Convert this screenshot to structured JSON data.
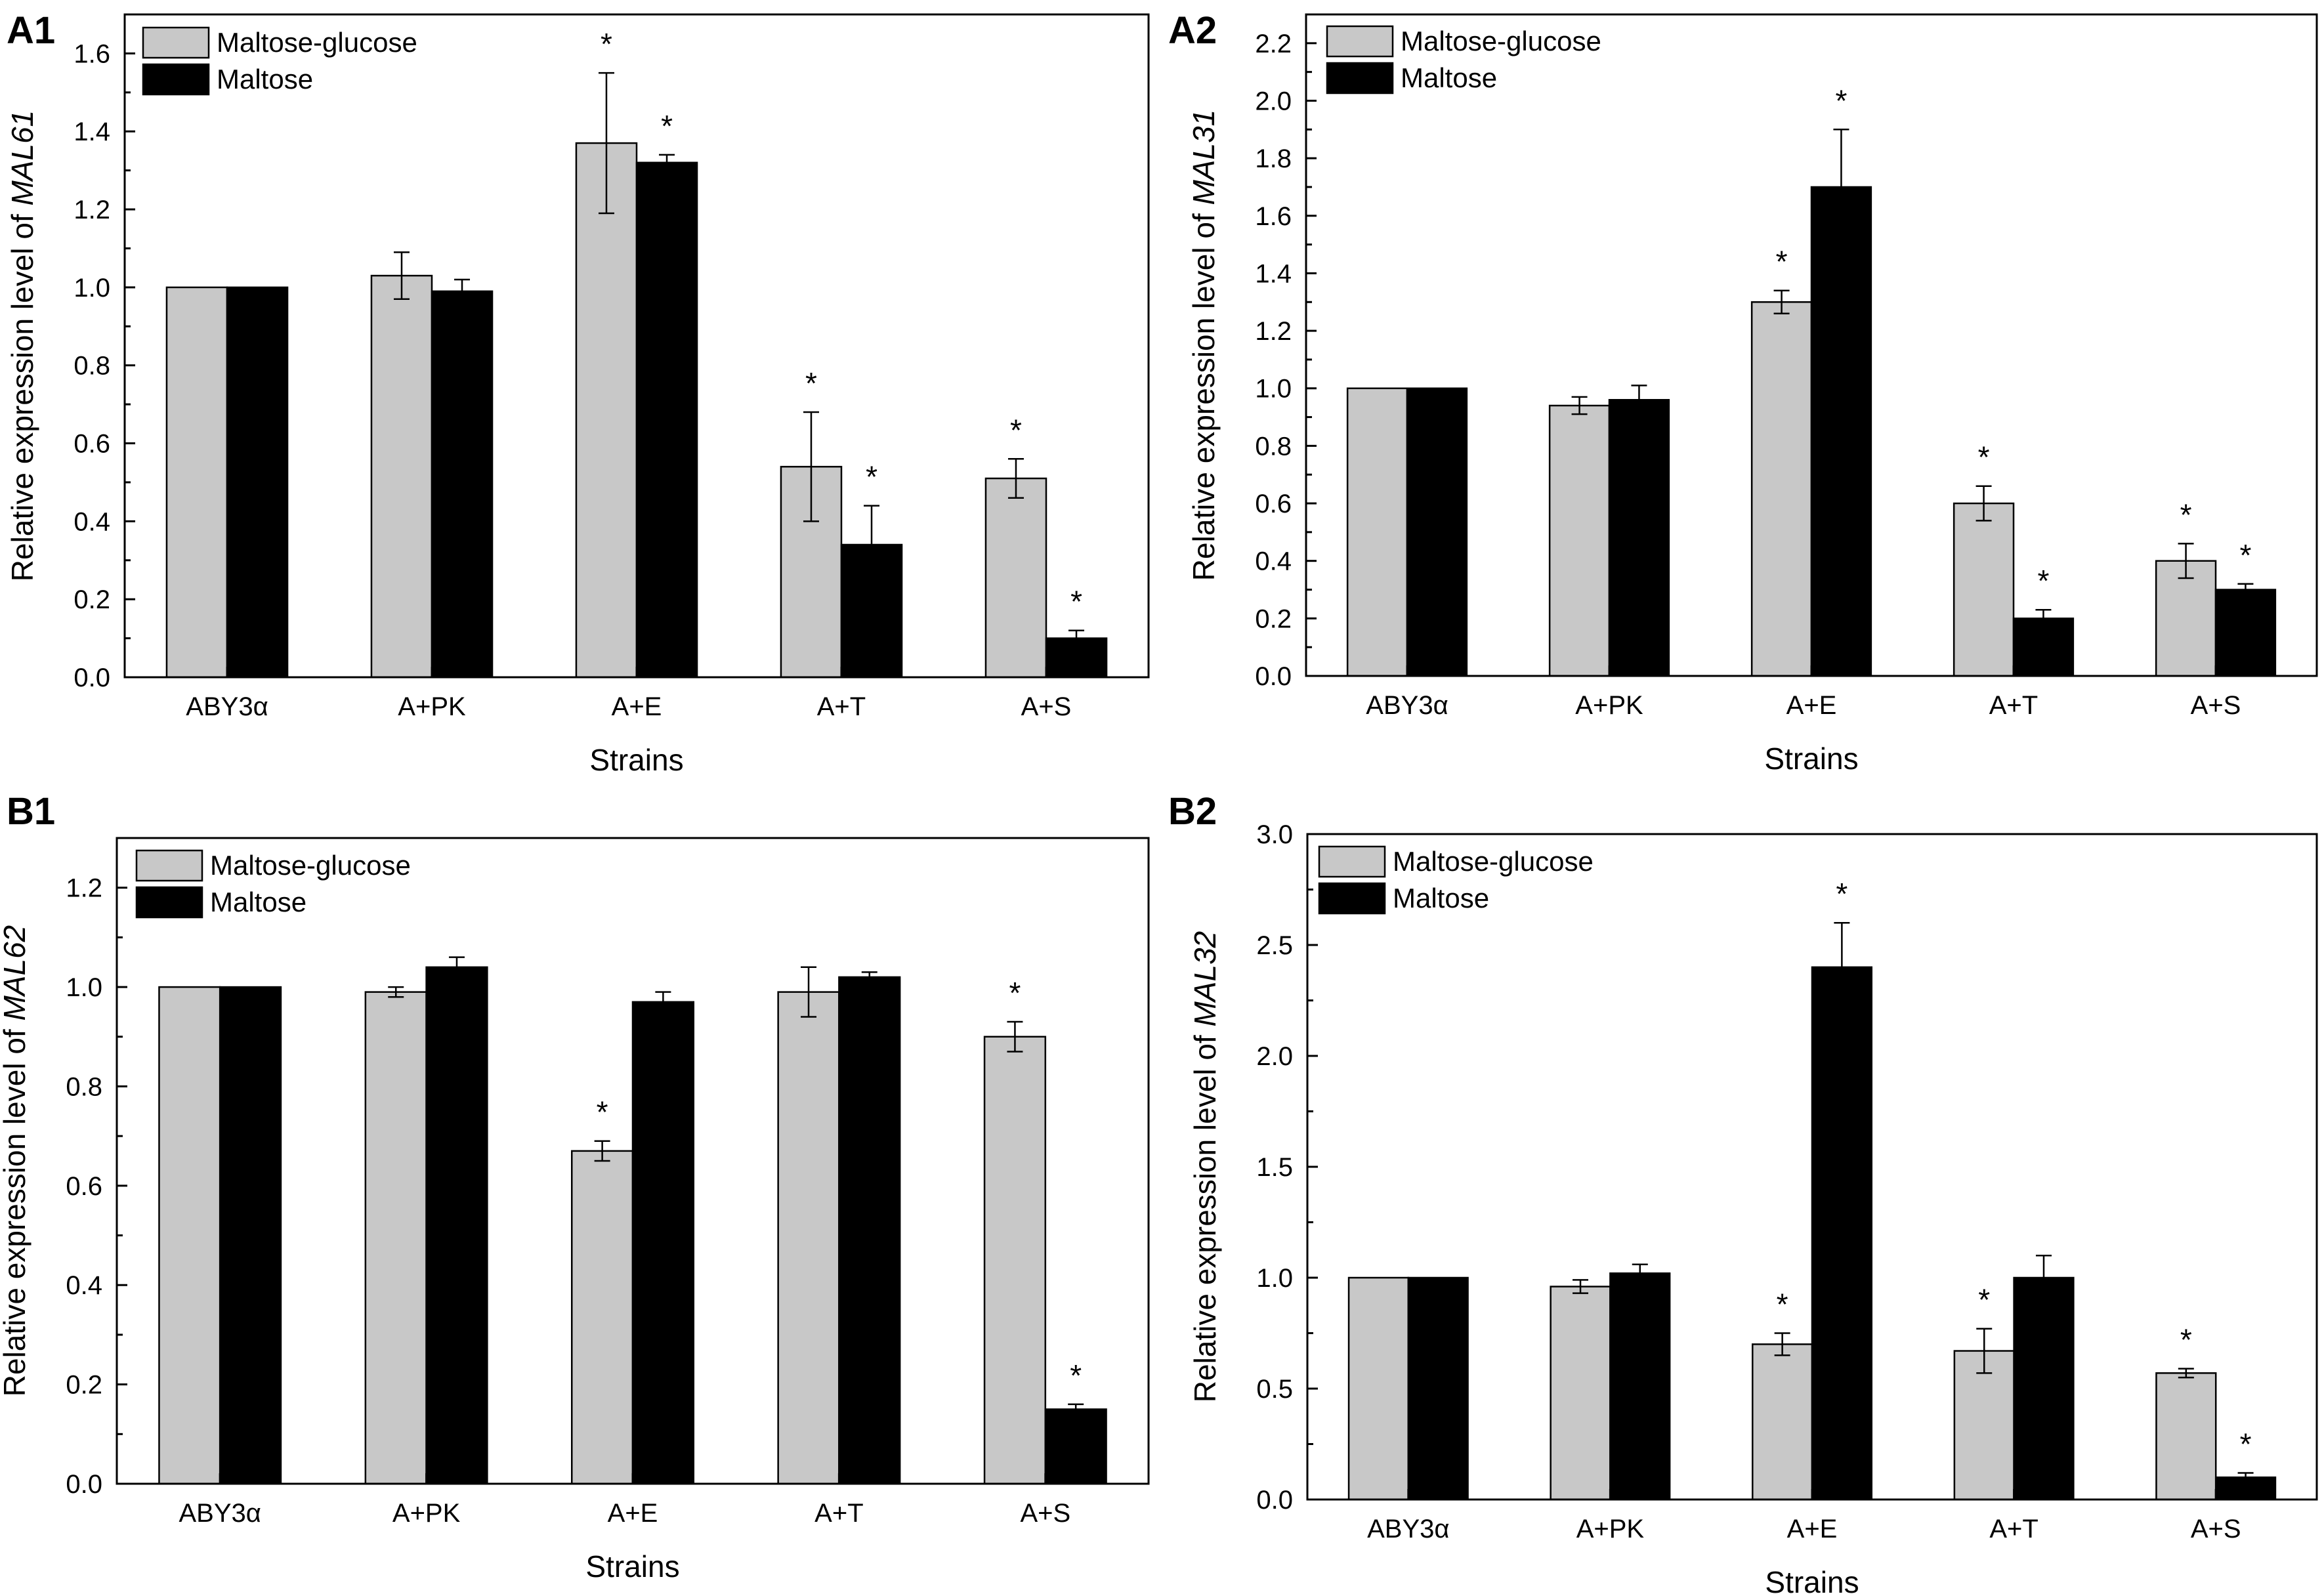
{
  "colors": {
    "maltose_glucose": "#c8c8c8",
    "maltose": "#000000",
    "axis": "#000000",
    "background": "#ffffff"
  },
  "chart_data": [
    {
      "panel": "A1",
      "type": "bar",
      "title": "",
      "xlabel": "Strains",
      "ylabel_prefix": "Relative expression level of ",
      "ylabel_gene": "MAL61",
      "categories": [
        "ABY3α",
        "A+PK",
        "A+E",
        "A+T",
        "A+S"
      ],
      "ylim": [
        0,
        1.7
      ],
      "yticks": [
        0.0,
        0.2,
        0.4,
        0.6,
        0.8,
        1.0,
        1.2,
        1.4,
        1.6
      ],
      "ytick_labels": [
        "0.0",
        "0.2",
        "0.4",
        "0.6",
        "0.8",
        "1.0",
        "1.2",
        "1.4",
        "1.6"
      ],
      "legend": {
        "position": "top-left",
        "entries": [
          "Maltose-glucose",
          "Maltose"
        ]
      },
      "series": [
        {
          "name": "Maltose-glucose",
          "values": [
            1.0,
            1.03,
            1.37,
            0.54,
            0.51
          ],
          "errors": [
            0,
            0.06,
            0.18,
            0.14,
            0.05
          ],
          "significant": [
            false,
            false,
            true,
            true,
            true
          ]
        },
        {
          "name": "Maltose",
          "values": [
            1.0,
            0.99,
            1.32,
            0.34,
            0.1
          ],
          "errors": [
            0,
            0.03,
            0.02,
            0.1,
            0.02
          ],
          "significant": [
            false,
            false,
            true,
            true,
            true
          ]
        }
      ]
    },
    {
      "panel": "A2",
      "type": "bar",
      "title": "",
      "xlabel": "Strains",
      "ylabel_prefix": "Relative expression level of ",
      "ylabel_gene": "MAL31",
      "categories": [
        "ABY3α",
        "A+PK",
        "A+E",
        "A+T",
        "A+S"
      ],
      "ylim": [
        0,
        2.3
      ],
      "yticks": [
        0.0,
        0.2,
        0.4,
        0.6,
        0.8,
        1.0,
        1.2,
        1.4,
        1.6,
        1.8,
        2.0,
        2.2
      ],
      "ytick_labels": [
        "0.0",
        "0.2",
        "0.4",
        "0.6",
        "0.8",
        "1.0",
        "1.2",
        "1.4",
        "1.6",
        "1.8",
        "2.0",
        "2.2"
      ],
      "legend": {
        "position": "top-left",
        "entries": [
          "Maltose-glucose",
          "Maltose"
        ]
      },
      "series": [
        {
          "name": "Maltose-glucose",
          "values": [
            1.0,
            0.94,
            1.3,
            0.6,
            0.4
          ],
          "errors": [
            0,
            0.03,
            0.04,
            0.06,
            0.06
          ],
          "significant": [
            false,
            false,
            true,
            true,
            true
          ]
        },
        {
          "name": "Maltose",
          "values": [
            1.0,
            0.96,
            1.7,
            0.2,
            0.3
          ],
          "errors": [
            0,
            0.05,
            0.2,
            0.03,
            0.02
          ],
          "significant": [
            false,
            false,
            true,
            true,
            true
          ]
        }
      ]
    },
    {
      "panel": "B1",
      "type": "bar",
      "title": "",
      "xlabel": "Strains",
      "ylabel_prefix": "Relative expression level of ",
      "ylabel_gene": "MAL62",
      "categories": [
        "ABY3α",
        "A+PK",
        "A+E",
        "A+T",
        "A+S"
      ],
      "ylim": [
        0,
        1.3
      ],
      "yticks": [
        0.0,
        0.2,
        0.4,
        0.6,
        0.8,
        1.0,
        1.2
      ],
      "ytick_labels": [
        "0.0",
        "0.2",
        "0.4",
        "0.6",
        "0.8",
        "1.0",
        "1.2"
      ],
      "legend": {
        "position": "top-left",
        "entries": [
          "Maltose-glucose",
          "Maltose"
        ]
      },
      "series": [
        {
          "name": "Maltose-glucose",
          "values": [
            1.0,
            0.99,
            0.67,
            0.99,
            0.9
          ],
          "errors": [
            0,
            0.01,
            0.02,
            0.05,
            0.03
          ],
          "significant": [
            false,
            false,
            true,
            false,
            true
          ]
        },
        {
          "name": "Maltose",
          "values": [
            1.0,
            1.04,
            0.97,
            1.02,
            0.15
          ],
          "errors": [
            0,
            0.02,
            0.02,
            0.01,
            0.01
          ],
          "significant": [
            false,
            false,
            false,
            false,
            true
          ]
        }
      ]
    },
    {
      "panel": "B2",
      "type": "bar",
      "title": "",
      "xlabel": "Strains",
      "ylabel_prefix": "Relative expression level of ",
      "ylabel_gene": "MAL32",
      "categories": [
        "ABY3α",
        "A+PK",
        "A+E",
        "A+T",
        "A+S"
      ],
      "ylim": [
        0,
        3.0
      ],
      "yticks": [
        0.0,
        0.5,
        1.0,
        1.5,
        2.0,
        2.5,
        3.0
      ],
      "ytick_labels": [
        "0.0",
        "0.5",
        "1.0",
        "1.5",
        "2.0",
        "2.5",
        "3.0"
      ],
      "legend": {
        "position": "top-left",
        "entries": [
          "Maltose-glucose",
          "Maltose"
        ]
      },
      "series": [
        {
          "name": "Maltose-glucose",
          "values": [
            1.0,
            0.96,
            0.7,
            0.67,
            0.57
          ],
          "errors": [
            0,
            0.03,
            0.05,
            0.1,
            0.02
          ],
          "significant": [
            false,
            false,
            true,
            true,
            true
          ]
        },
        {
          "name": "Maltose",
          "values": [
            1.0,
            1.02,
            2.4,
            1.0,
            0.1
          ],
          "errors": [
            0,
            0.04,
            0.2,
            0.1,
            0.02
          ],
          "significant": [
            false,
            false,
            true,
            false,
            true
          ]
        }
      ]
    }
  ]
}
